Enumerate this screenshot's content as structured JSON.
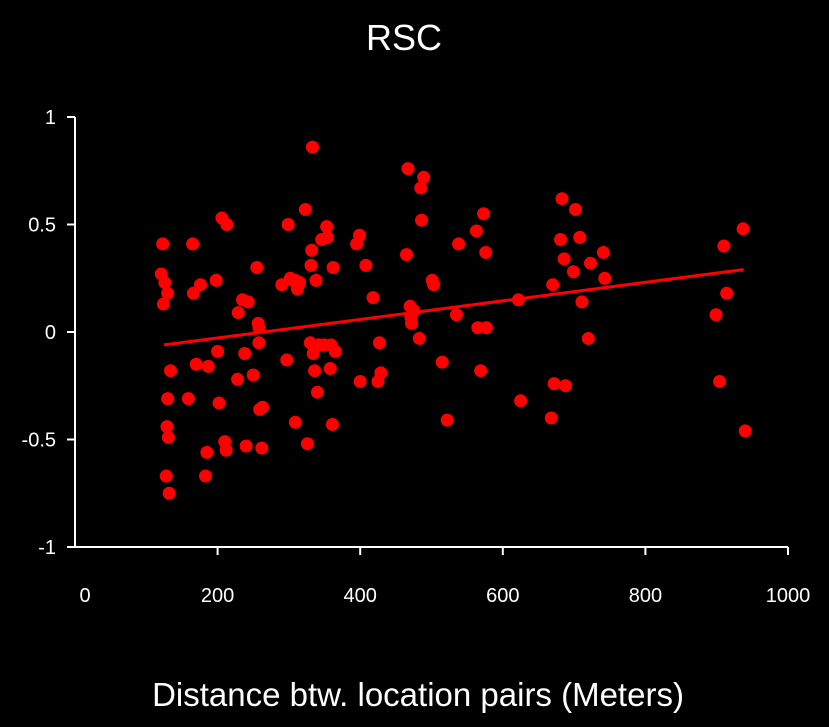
{
  "chart_data": {
    "type": "scatter",
    "title": "RSC",
    "xlabel": "Distance btw. location pairs (Meters)",
    "ylabel": "",
    "xlim": [
      0,
      1000
    ],
    "ylim": [
      -1,
      1
    ],
    "x_ticks": [
      "0",
      "200",
      "400",
      "600",
      "800",
      "1000"
    ],
    "y_ticks": [
      "1",
      "0.5",
      "0",
      "-0.5",
      "-1"
    ],
    "grid": false,
    "colors": {
      "background": "#000000",
      "points": "#ff0000",
      "trend": "#ff0000",
      "axes": "#ffffff"
    },
    "trendline": {
      "x": [
        125,
        937
      ],
      "y": [
        -0.06,
        0.29
      ]
    },
    "series": [
      {
        "points": [
          [
            121,
            0.27
          ],
          [
            123,
            0.41
          ],
          [
            124,
            0.13
          ],
          [
            126,
            0.23
          ],
          [
            128,
            -0.67
          ],
          [
            129,
            -0.44
          ],
          [
            130,
            0.18
          ],
          [
            130,
            -0.31
          ],
          [
            131,
            -0.49
          ],
          [
            132,
            -0.75
          ],
          [
            134,
            -0.18
          ],
          [
            159,
            -0.31
          ],
          [
            165,
            0.41
          ],
          [
            166,
            0.18
          ],
          [
            170,
            -0.15
          ],
          [
            176,
            0.22
          ],
          [
            183,
            -0.67
          ],
          [
            185,
            -0.56
          ],
          [
            187,
            -0.16
          ],
          [
            198,
            0.24
          ],
          [
            200,
            -0.09
          ],
          [
            202,
            -0.33
          ],
          [
            206,
            0.53
          ],
          [
            210,
            -0.51
          ],
          [
            212,
            -0.55
          ],
          [
            213,
            0.5
          ],
          [
            228,
            -0.22
          ],
          [
            229,
            0.09
          ],
          [
            235,
            0.15
          ],
          [
            238,
            -0.1
          ],
          [
            240,
            -0.53
          ],
          [
            243,
            0.14
          ],
          [
            250,
            -0.2
          ],
          [
            255,
            0.3
          ],
          [
            257,
            0.04
          ],
          [
            258,
            0.02
          ],
          [
            258,
            -0.05
          ],
          [
            259,
            -0.36
          ],
          [
            262,
            -0.54
          ],
          [
            263,
            -0.35
          ],
          [
            290,
            0.22
          ],
          [
            297,
            -0.13
          ],
          [
            299,
            0.5
          ],
          [
            302,
            0.25
          ],
          [
            305,
            0.24
          ],
          [
            309,
            0.24
          ],
          [
            309,
            -0.42
          ],
          [
            312,
            0.2
          ],
          [
            315,
            0.23
          ],
          [
            323,
            0.57
          ],
          [
            326,
            -0.52
          ],
          [
            330,
            -0.05
          ],
          [
            331,
            0.31
          ],
          [
            332,
            0.38
          ],
          [
            333,
            0.86
          ],
          [
            334,
            -0.1
          ],
          [
            336,
            -0.18
          ],
          [
            338,
            0.24
          ],
          [
            340,
            -0.28
          ],
          [
            342,
            -0.06
          ],
          [
            346,
            0.43
          ],
          [
            349,
            -0.06
          ],
          [
            353,
            0.49
          ],
          [
            354,
            0.44
          ],
          [
            358,
            -0.17
          ],
          [
            359,
            -0.06
          ],
          [
            361,
            -0.43
          ],
          [
            362,
            0.3
          ],
          [
            365,
            -0.09
          ],
          [
            395,
            0.41
          ],
          [
            399,
            0.45
          ],
          [
            400,
            -0.23
          ],
          [
            408,
            0.31
          ],
          [
            418,
            0.16
          ],
          [
            425,
            -0.23
          ],
          [
            427,
            -0.05
          ],
          [
            429,
            -0.19
          ],
          [
            465,
            0.36
          ],
          [
            467,
            0.76
          ],
          [
            470,
            0.12
          ],
          [
            471,
            0.07
          ],
          [
            472,
            0.04
          ],
          [
            475,
            0.1
          ],
          [
            483,
            -0.03
          ],
          [
            485,
            0.67
          ],
          [
            486,
            0.52
          ],
          [
            489,
            0.72
          ],
          [
            501,
            0.24
          ],
          [
            503,
            0.22
          ],
          [
            515,
            -0.14
          ],
          [
            522,
            -0.41
          ],
          [
            535,
            0.08
          ],
          [
            538,
            0.41
          ],
          [
            563,
            0.47
          ],
          [
            565,
            0.02
          ],
          [
            569,
            -0.18
          ],
          [
            573,
            0.55
          ],
          [
            576,
            0.37
          ],
          [
            577,
            0.02
          ],
          [
            622,
            0.15
          ],
          [
            625,
            -0.32
          ],
          [
            668,
            -0.4
          ],
          [
            670,
            0.22
          ],
          [
            672,
            -0.24
          ],
          [
            681,
            0.43
          ],
          [
            683,
            0.62
          ],
          [
            686,
            0.34
          ],
          [
            688,
            -0.25
          ],
          [
            699,
            0.28
          ],
          [
            702,
            0.57
          ],
          [
            708,
            0.44
          ],
          [
            711,
            0.14
          ],
          [
            720,
            -0.03
          ],
          [
            723,
            0.32
          ],
          [
            741,
            0.37
          ],
          [
            743,
            0.25
          ],
          [
            899,
            0.08
          ],
          [
            904,
            -0.23
          ],
          [
            910,
            0.4
          ],
          [
            914,
            0.18
          ],
          [
            937,
            0.48
          ],
          [
            940,
            -0.46
          ]
        ]
      }
    ]
  }
}
